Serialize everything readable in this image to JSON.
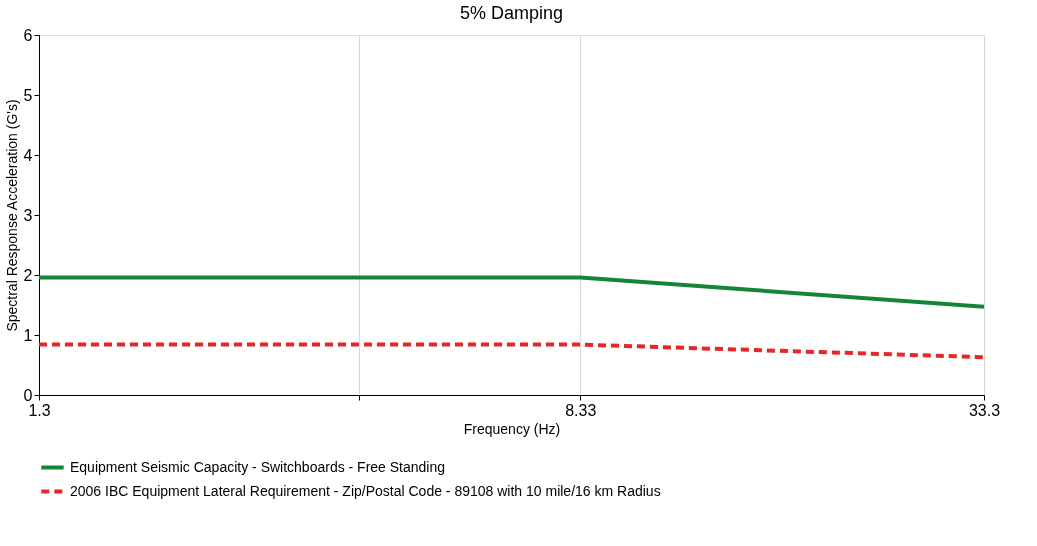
{
  "chart_data": {
    "type": "line",
    "title": "5% Damping",
    "xlabel": "Frequency (Hz)",
    "ylabel": "Spectral Response Acceleration (G's)",
    "log": "x",
    "xlim": [
      1.3,
      33.3
    ],
    "xticks": [
      1.3,
      {
        "value": 3.9,
        "label": null
      },
      8.33,
      33.3
    ],
    "ylim": [
      0,
      6
    ],
    "yticks": [
      0,
      1,
      2,
      3,
      4,
      5,
      6
    ],
    "grid": "x",
    "legend": "bottom",
    "series": [
      {
        "name": "Equipment Seismic Capacity - Switchboards - Free Standing",
        "color": "#138535",
        "line_style": "solid",
        "x": [
          1.3,
          8.33,
          33.3
        ],
        "values": [
          1.96,
          1.96,
          1.47
        ]
      },
      {
        "name": "2006 IBC Equipment Lateral Requirement - Zip/Postal Code - 89108 with 10 mile/16 km Radius",
        "color": "#ee2424",
        "line_style": "dashed",
        "x": [
          1.3,
          8.33,
          33.3
        ],
        "values": [
          0.84,
          0.84,
          0.63
        ]
      }
    ]
  }
}
